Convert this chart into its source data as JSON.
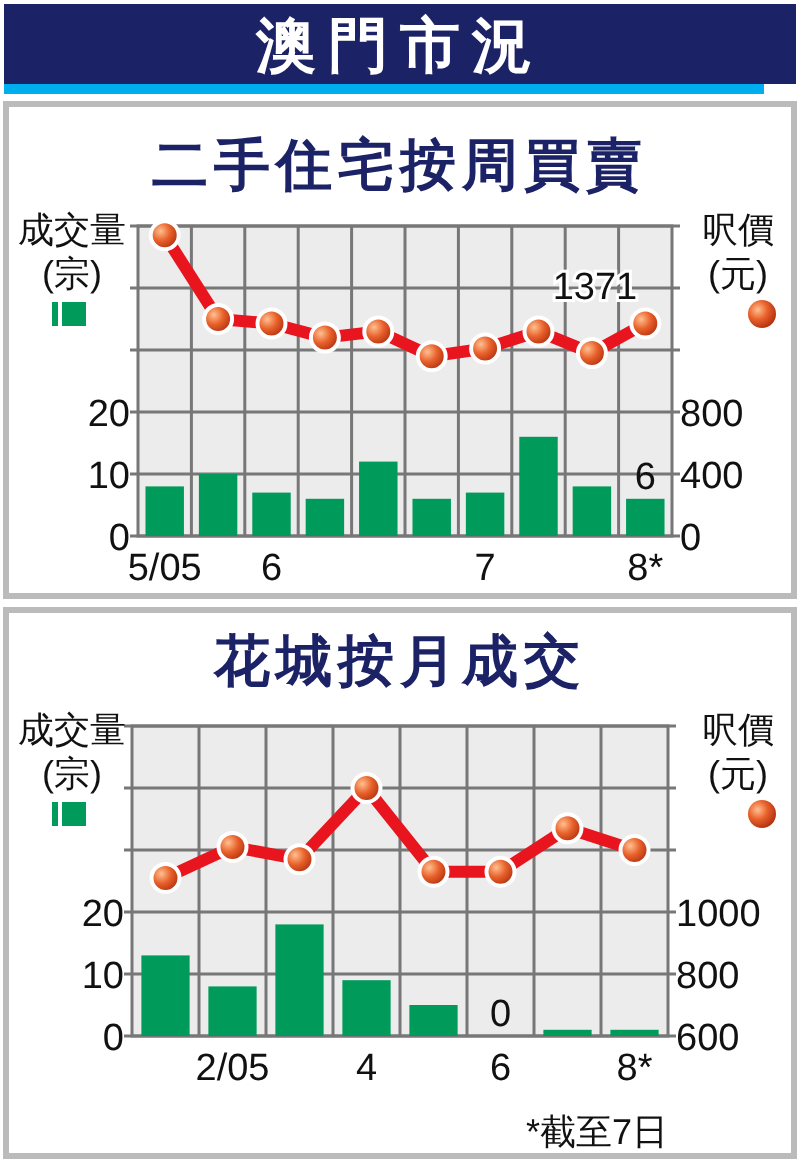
{
  "chart_data": [
    {
      "type": "other",
      "title": "澳門市況"
    },
    {
      "type": "bar",
      "title": "二手住宅按周買賣",
      "ylabel": "成交量\n(宗)",
      "y2label": "呎價\n(元)",
      "categories": [
        "5/05",
        null,
        "6",
        null,
        null,
        null,
        "7",
        null,
        null,
        "8*"
      ],
      "series": [
        {
          "type": "bar",
          "color": "#009a5a",
          "values": [
            8,
            10,
            7,
            6,
            12,
            6,
            7,
            16,
            8,
            6
          ],
          "value_labels": [
            null,
            null,
            null,
            null,
            null,
            null,
            null,
            null,
            null,
            "6"
          ]
        },
        {
          "type": "line",
          "axis": "y2",
          "color": "#e8141e",
          "values": [
            1940,
            1400,
            1371,
            1280,
            1320,
            1160,
            1210,
            1320,
            1180,
            1371
          ],
          "value_labels": [
            null,
            null,
            null,
            null,
            null,
            null,
            null,
            null,
            null,
            "1371"
          ]
        }
      ],
      "ylim": [
        0,
        50
      ],
      "yticks": [
        0,
        10,
        20,
        {
          "value": 30,
          "label": null
        },
        {
          "value": 40,
          "label": null
        },
        {
          "value": 50,
          "label": null
        }
      ],
      "y2lim": [
        0,
        2000
      ],
      "y2ticks": [
        0,
        400,
        800,
        {
          "value": 1200,
          "label": null
        },
        {
          "value": 1600,
          "label": null
        },
        {
          "value": 2000,
          "label": null
        }
      ],
      "grid": true,
      "marker": "circle",
      "line_style": "solid"
    },
    {
      "type": "bar",
      "title": "花城按月成交",
      "ylabel": "成交量\n(宗)",
      "y2label": "呎價\n(元)",
      "categories": [
        null,
        "2/05",
        null,
        "4",
        null,
        "6",
        null,
        "8*"
      ],
      "series": [
        {
          "type": "bar",
          "color": "#009a5a",
          "values": [
            13,
            8,
            18,
            9,
            5,
            0,
            1,
            1
          ],
          "value_labels": [
            null,
            null,
            null,
            null,
            null,
            "0",
            null,
            null
          ]
        },
        {
          "type": "line",
          "axis": "y2",
          "color": "#e8141e",
          "values": [
            1110,
            1210,
            1170,
            1400,
            1130,
            1130,
            1270,
            1200
          ]
        }
      ],
      "ylim": [
        0,
        50
      ],
      "yticks": [
        0,
        10,
        20,
        {
          "value": 30,
          "label": null
        },
        {
          "value": 40,
          "label": null
        },
        {
          "value": 50,
          "label": null
        }
      ],
      "y2lim": [
        600,
        1600
      ],
      "y2ticks": [
        600,
        800,
        1000,
        {
          "value": 1200,
          "label": null
        },
        {
          "value": 1400,
          "label": null
        },
        {
          "value": 1600,
          "label": null
        }
      ],
      "grid": true,
      "marker": "circle",
      "line_style": "solid",
      "annotations": [
        "*截至7日"
      ]
    }
  ]
}
